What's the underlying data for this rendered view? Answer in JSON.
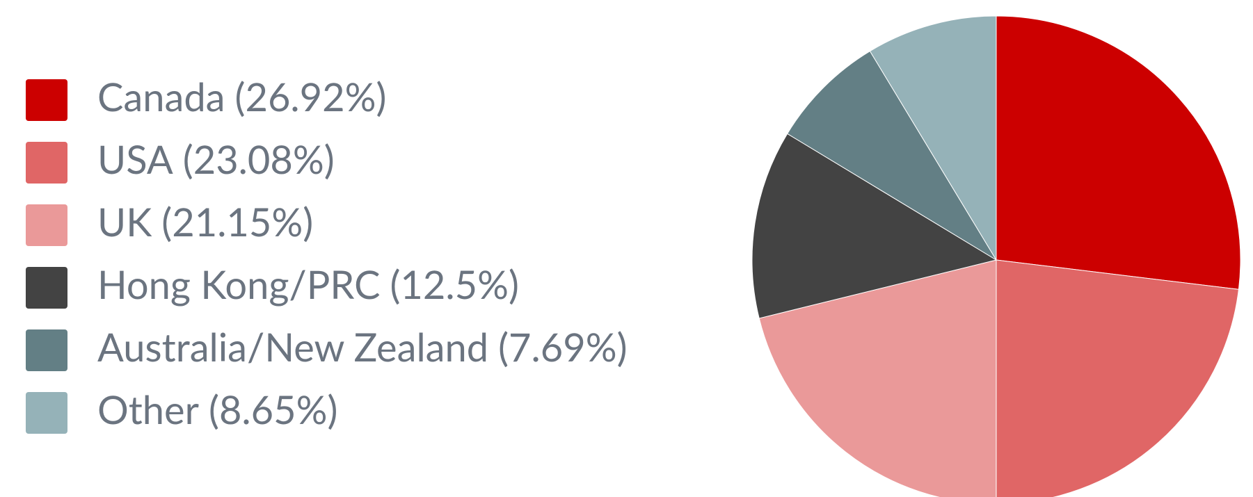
{
  "chart_data": {
    "type": "pie",
    "categories": [
      "Canada",
      "USA",
      "UK",
      "Hong Kong/PRC",
      "Australia/New Zealand",
      "Other"
    ],
    "values": [
      26.92,
      23.08,
      21.15,
      12.5,
      7.69,
      8.65
    ],
    "value_labels": [
      "(26.92%)",
      "(23.08%)",
      "(21.15%)",
      "(12.5%)",
      "(7.69%)",
      "(8.65%)"
    ],
    "colors": [
      "#cc0000",
      "#e06666",
      "#ea9999",
      "#434343",
      "#637f85",
      "#95b2b8"
    ],
    "legend": "left"
  }
}
